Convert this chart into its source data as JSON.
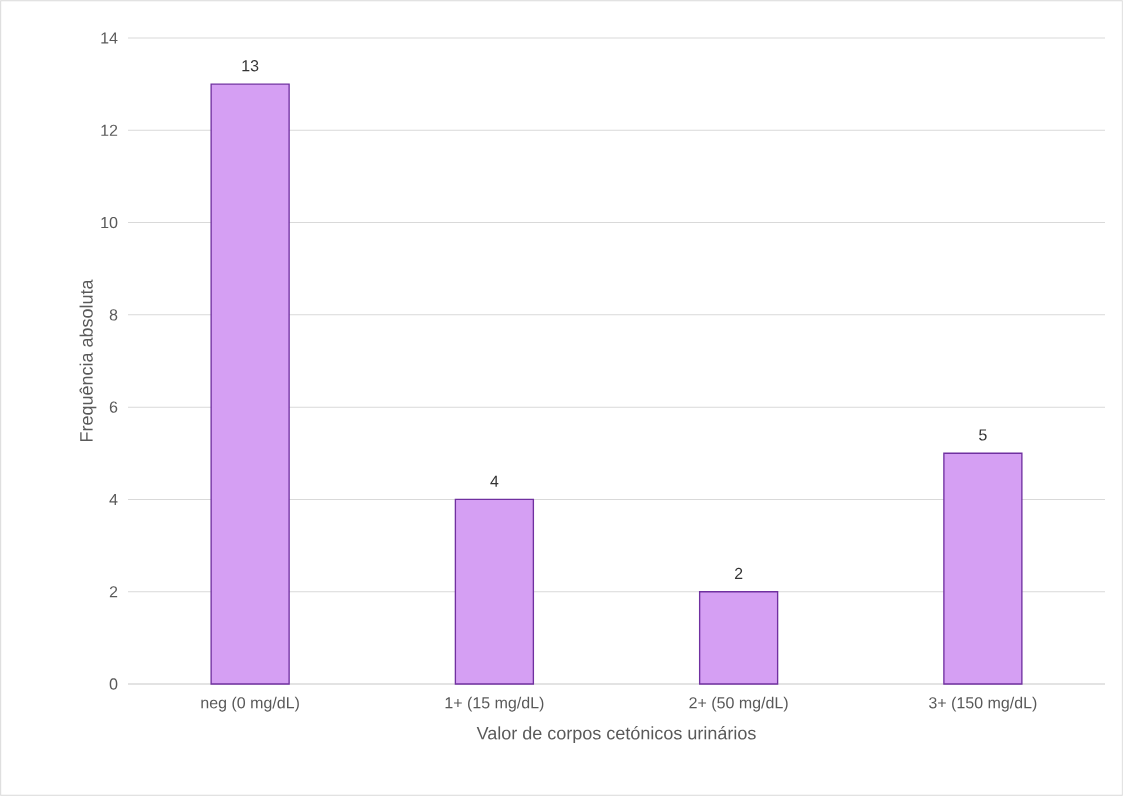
{
  "chart_data": {
    "type": "bar",
    "xlabel": "Valor de corpos cetónicos urinários",
    "ylabel": "Frequência absoluta",
    "categories": [
      "neg (0 mg/dL)",
      "1+ (15 mg/dL)",
      "2+ (50 mg/dL)",
      "3+ (150 mg/dL)"
    ],
    "values": [
      13,
      4,
      2,
      5
    ],
    "color": "#d59ff3",
    "ylim": [
      0,
      14
    ],
    "yticks": [
      0,
      2,
      4,
      6,
      8,
      10,
      12,
      14
    ],
    "grid": "y",
    "data_labels": true
  }
}
